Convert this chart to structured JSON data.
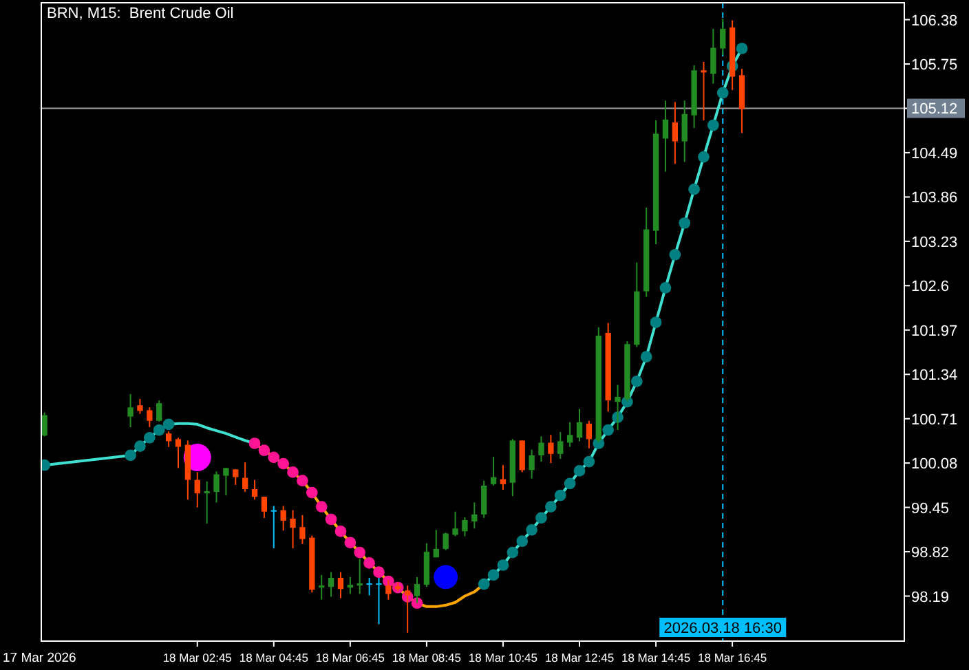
{
  "chart_data": {
    "type": "candlestick",
    "title": "BRN, M15:  Brent Crude Oil",
    "x": [
      "2026-03-17T22:45",
      "2026-03-18T01:00",
      "2026-03-18T01:15",
      "2026-03-18T01:30",
      "2026-03-18T01:45",
      "2026-03-18T02:00",
      "2026-03-18T02:15",
      "2026-03-18T02:30",
      "2026-03-18T02:45",
      "2026-03-18T03:00",
      "2026-03-18T03:15",
      "2026-03-18T03:30",
      "2026-03-18T03:45",
      "2026-03-18T04:00",
      "2026-03-18T04:15",
      "2026-03-18T04:30",
      "2026-03-18T04:45",
      "2026-03-18T05:00",
      "2026-03-18T05:15",
      "2026-03-18T05:30",
      "2026-03-18T05:45",
      "2026-03-18T06:00",
      "2026-03-18T06:15",
      "2026-03-18T06:30",
      "2026-03-18T06:45",
      "2026-03-18T07:00",
      "2026-03-18T07:15",
      "2026-03-18T07:30",
      "2026-03-18T07:45",
      "2026-03-18T08:00",
      "2026-03-18T08:15",
      "2026-03-18T08:30",
      "2026-03-18T08:45",
      "2026-03-18T09:00",
      "2026-03-18T09:15",
      "2026-03-18T09:30",
      "2026-03-18T09:45",
      "2026-03-18T10:00",
      "2026-03-18T10:15",
      "2026-03-18T10:30",
      "2026-03-18T10:45",
      "2026-03-18T11:00",
      "2026-03-18T11:15",
      "2026-03-18T11:30",
      "2026-03-18T11:45",
      "2026-03-18T12:00",
      "2026-03-18T12:15",
      "2026-03-18T12:30",
      "2026-03-18T12:45",
      "2026-03-18T13:00",
      "2026-03-18T13:15",
      "2026-03-18T13:30",
      "2026-03-18T13:45",
      "2026-03-18T14:00",
      "2026-03-18T14:15",
      "2026-03-18T14:30",
      "2026-03-18T14:45",
      "2026-03-18T15:00",
      "2026-03-18T15:15",
      "2026-03-18T15:30",
      "2026-03-18T15:45",
      "2026-03-18T16:00",
      "2026-03-18T16:15",
      "2026-03-18T16:30",
      "2026-03-18T16:45",
      "2026-03-18T17:00"
    ],
    "ohlc": [
      [
        100.47,
        100.8,
        100.46,
        100.76
      ],
      [
        100.74,
        101.06,
        100.59,
        100.87
      ],
      [
        100.9,
        100.99,
        100.78,
        100.82
      ],
      [
        100.83,
        100.87,
        100.59,
        100.68
      ],
      [
        100.68,
        100.97,
        100.67,
        100.93
      ],
      [
        100.5,
        100.53,
        100.31,
        100.39
      ],
      [
        100.42,
        100.44,
        100.01,
        100.31
      ],
      [
        100.34,
        100.4,
        99.56,
        99.84
      ],
      [
        99.84,
        99.95,
        99.45,
        99.65
      ],
      [
        99.65,
        99.82,
        99.22,
        99.68
      ],
      [
        99.67,
        99.96,
        99.52,
        99.92
      ],
      [
        99.9,
        100.01,
        99.62,
        100.01
      ],
      [
        99.99,
        99.99,
        99.77,
        99.88
      ],
      [
        99.87,
        100.09,
        99.67,
        99.71
      ],
      [
        99.71,
        99.84,
        99.56,
        99.6
      ],
      [
        99.6,
        99.6,
        99.3,
        99.39
      ],
      [
        99.41,
        99.47,
        98.87,
        99.41
      ],
      [
        99.41,
        99.47,
        99.12,
        99.26
      ],
      [
        99.29,
        99.41,
        98.87,
        99.16
      ],
      [
        99.17,
        99.34,
        98.93,
        99
      ],
      [
        99.02,
        99.05,
        98.24,
        98.28
      ],
      [
        98.31,
        98.49,
        98.14,
        98.34
      ],
      [
        98.32,
        98.53,
        98.18,
        98.45
      ],
      [
        98.45,
        98.53,
        98.16,
        98.29
      ],
      [
        98.31,
        98.46,
        98.22,
        98.35
      ],
      [
        98.34,
        98.72,
        98.22,
        98.37
      ],
      [
        98.37,
        98.45,
        98.2,
        98.37
      ],
      [
        98.37,
        98.45,
        97.79,
        98.37
      ],
      [
        98.34,
        98.42,
        98.14,
        98.22
      ],
      [
        98.33,
        98.38,
        98.26,
        98.29
      ],
      [
        98.27,
        98.34,
        97.67,
        98.2
      ],
      [
        98.19,
        98.46,
        98.09,
        98.36
      ],
      [
        98.35,
        98.94,
        98.32,
        98.82
      ],
      [
        98.74,
        99.13,
        98.74,
        98.86
      ],
      [
        98.86,
        99.09,
        98.84,
        99.08
      ],
      [
        99.06,
        99.39,
        99.04,
        99.15
      ],
      [
        99.11,
        99.31,
        99.04,
        99.27
      ],
      [
        99.25,
        99.52,
        99.15,
        99.35
      ],
      [
        99.35,
        99.83,
        99.3,
        99.76
      ],
      [
        99.78,
        100.17,
        99.76,
        99.88
      ],
      [
        99.85,
        100.05,
        99.7,
        99.78
      ],
      [
        99.8,
        100.42,
        99.61,
        100.4
      ],
      [
        100.4,
        100.4,
        99.95,
        99.98
      ],
      [
        99.98,
        100.27,
        99.86,
        100.19
      ],
      [
        100.19,
        100.46,
        100.1,
        100.37
      ],
      [
        100.37,
        100.48,
        100.08,
        100.21
      ],
      [
        100.21,
        100.52,
        100.14,
        100.39
      ],
      [
        100.37,
        100.66,
        100.31,
        100.48
      ],
      [
        100.44,
        100.85,
        100.39,
        100.66
      ],
      [
        100.64,
        100.68,
        100.29,
        100.42
      ],
      [
        100.4,
        102.01,
        100.37,
        101.89
      ],
      [
        101.93,
        102.07,
        100.81,
        100.97
      ],
      [
        100.95,
        101.19,
        100.55,
        101.02
      ],
      [
        100.99,
        101.81,
        100.96,
        101.77
      ],
      [
        101.76,
        102.93,
        101.73,
        102.52
      ],
      [
        102.52,
        103.71,
        102.44,
        103.4
      ],
      [
        103.38,
        104.95,
        103.19,
        104.76
      ],
      [
        104.69,
        105.23,
        104.22,
        104.96
      ],
      [
        104.92,
        105.21,
        104.33,
        104.65
      ],
      [
        104.65,
        105.23,
        104.36,
        105.04
      ],
      [
        105.02,
        105.73,
        104.84,
        105.66
      ],
      [
        105.66,
        105.78,
        104.95,
        105.63
      ],
      [
        105.61,
        106.25,
        105.47,
        105.98
      ],
      [
        105.97,
        106.39,
        105.88,
        106.25
      ],
      [
        106.27,
        106.37,
        105.38,
        105.57
      ],
      [
        105.59,
        105.68,
        104.77,
        105.11
      ]
    ],
    "colors": [
      "#228b22",
      "#228b22",
      "#ff4500",
      "#ff4500",
      "#228b22",
      "#ff4500",
      "#ff4500",
      "#ff4500",
      "#ff4500",
      "#228b22",
      "#228b22",
      "#228b22",
      "#ff4500",
      "#ff4500",
      "#ff4500",
      "#ff4500",
      "#00bfff",
      "#ff4500",
      "#ff4500",
      "#ff4500",
      "#ff4500",
      "#228b22",
      "#228b22",
      "#ff4500",
      "#228b22",
      "#228b22",
      "#00bfff",
      "#00bfff",
      "#ff4500",
      "#ff4500",
      "#ff4500",
      "#228b22",
      "#228b22",
      "#228b22",
      "#228b22",
      "#228b22",
      "#228b22",
      "#228b22",
      "#228b22",
      "#228b22",
      "#ff4500",
      "#228b22",
      "#ff4500",
      "#228b22",
      "#228b22",
      "#ff4500",
      "#228b22",
      "#228b22",
      "#228b22",
      "#ff4500",
      "#228b22",
      "#ff4500",
      "#228b22",
      "#228b22",
      "#228b22",
      "#228b22",
      "#228b22",
      "#228b22",
      "#ff4500",
      "#228b22",
      "#228b22",
      "#ff4500",
      "#228b22",
      "#228b22",
      "#ff4500",
      "#ff4500"
    ],
    "series": [
      {
        "type": "line",
        "color": "#40e0d0",
        "x": [
          "2026-03-17T22:45",
          "2026-03-18T01:00",
          "2026-03-18T01:15",
          "2026-03-18T01:30",
          "2026-03-18T01:45",
          "2026-03-18T02:00",
          "2026-03-18T02:15",
          "2026-03-18T02:30",
          "2026-03-18T02:45",
          "2026-03-18T03:00",
          "2026-03-18T03:15",
          "2026-03-18T03:30",
          "2026-03-18T03:45",
          "2026-03-18T04:00",
          "2026-03-18T04:15"
        ],
        "values": [
          100.05,
          100.19,
          100.32,
          100.44,
          100.55,
          100.63,
          100.64,
          100.64,
          100.63,
          100.58,
          100.54,
          100.5,
          100.45,
          100.4,
          100.36
        ]
      },
      {
        "type": "line",
        "color": "#ffa500",
        "x": [
          "2026-03-18T04:15",
          "2026-03-18T04:30",
          "2026-03-18T04:45",
          "2026-03-18T05:00",
          "2026-03-18T05:15",
          "2026-03-18T05:30",
          "2026-03-18T05:45",
          "2026-03-18T06:00",
          "2026-03-18T06:15",
          "2026-03-18T06:30",
          "2026-03-18T06:45",
          "2026-03-18T07:00",
          "2026-03-18T07:15",
          "2026-03-18T07:30",
          "2026-03-18T07:45",
          "2026-03-18T08:00",
          "2026-03-18T08:15",
          "2026-03-18T08:30",
          "2026-03-18T08:45",
          "2026-03-18T09:00",
          "2026-03-18T09:15",
          "2026-03-18T09:30",
          "2026-03-18T09:45",
          "2026-03-18T10:00",
          "2026-03-18T10:15"
        ],
        "values": [
          100.36,
          100.26,
          100.16,
          100.07,
          99.95,
          99.83,
          99.66,
          99.46,
          99.28,
          99.11,
          98.95,
          98.81,
          98.66,
          98.53,
          98.4,
          98.31,
          98.18,
          98.09,
          98.04,
          98.04,
          98.06,
          98.1,
          98.19,
          98.25,
          98.36
        ]
      },
      {
        "type": "line",
        "color": "#40e0d0",
        "x": [
          "2026-03-18T10:15",
          "2026-03-18T10:30",
          "2026-03-18T10:45",
          "2026-03-18T11:00",
          "2026-03-18T11:15",
          "2026-03-18T11:30",
          "2026-03-18T11:45",
          "2026-03-18T12:00",
          "2026-03-18T12:15",
          "2026-03-18T12:30",
          "2026-03-18T12:45",
          "2026-03-18T13:00",
          "2026-03-18T13:15",
          "2026-03-18T13:30",
          "2026-03-18T13:45",
          "2026-03-18T14:00",
          "2026-03-18T14:15",
          "2026-03-18T14:30",
          "2026-03-18T14:45",
          "2026-03-18T15:00",
          "2026-03-18T15:15",
          "2026-03-18T15:30",
          "2026-03-18T15:45",
          "2026-03-18T16:00",
          "2026-03-18T16:15",
          "2026-03-18T16:30",
          "2026-03-18T16:45",
          "2026-03-18T17:00"
        ],
        "values": [
          98.36,
          98.49,
          98.63,
          98.81,
          98.97,
          99.13,
          99.3,
          99.46,
          99.62,
          99.79,
          99.97,
          100.1,
          100.36,
          100.55,
          100.73,
          100.95,
          101.24,
          101.59,
          102.08,
          102.57,
          103.04,
          103.49,
          103.97,
          104.43,
          104.88,
          105.34,
          105.72,
          105.97
        ]
      },
      {
        "type": "scatter",
        "marker": "circle",
        "color": "#008080",
        "x": [
          "2026-03-17T22:45",
          "2026-03-18T01:00",
          "2026-03-18T01:15",
          "2026-03-18T01:30",
          "2026-03-18T01:45",
          "2026-03-18T02:00",
          "2026-03-18T10:15",
          "2026-03-18T10:30",
          "2026-03-18T10:45",
          "2026-03-18T11:00",
          "2026-03-18T11:15",
          "2026-03-18T11:30",
          "2026-03-18T11:45",
          "2026-03-18T12:00",
          "2026-03-18T12:15",
          "2026-03-18T12:30",
          "2026-03-18T12:45",
          "2026-03-18T13:00",
          "2026-03-18T13:15",
          "2026-03-18T13:30",
          "2026-03-18T13:45",
          "2026-03-18T14:00",
          "2026-03-18T14:15",
          "2026-03-18T14:30",
          "2026-03-18T14:45",
          "2026-03-18T15:00",
          "2026-03-18T15:15",
          "2026-03-18T15:30",
          "2026-03-18T15:45",
          "2026-03-18T16:00",
          "2026-03-18T16:15",
          "2026-03-18T16:30",
          "2026-03-18T16:45",
          "2026-03-18T17:00"
        ],
        "values": [
          100.05,
          100.19,
          100.32,
          100.44,
          100.55,
          100.63,
          98.36,
          98.49,
          98.63,
          98.81,
          98.97,
          99.13,
          99.3,
          99.46,
          99.62,
          99.79,
          99.97,
          100.1,
          100.36,
          100.55,
          100.73,
          100.95,
          101.24,
          101.59,
          102.08,
          102.57,
          103.04,
          103.49,
          103.97,
          104.43,
          104.88,
          105.34,
          105.72,
          105.97
        ]
      },
      {
        "type": "scatter",
        "marker": "circle",
        "color": "#ff1493",
        "x": [
          "2026-03-18T04:15",
          "2026-03-18T04:30",
          "2026-03-18T04:45",
          "2026-03-18T05:00",
          "2026-03-18T05:15",
          "2026-03-18T05:30",
          "2026-03-18T05:45",
          "2026-03-18T06:00",
          "2026-03-18T06:15",
          "2026-03-18T06:30",
          "2026-03-18T06:45",
          "2026-03-18T07:00",
          "2026-03-18T07:15",
          "2026-03-18T07:30",
          "2026-03-18T07:45",
          "2026-03-18T08:00",
          "2026-03-18T08:15",
          "2026-03-18T08:30"
        ],
        "values": [
          100.36,
          100.26,
          100.16,
          100.07,
          99.95,
          99.83,
          99.66,
          99.46,
          99.28,
          99.11,
          98.95,
          98.81,
          98.66,
          98.53,
          98.4,
          98.31,
          98.18,
          98.09
        ]
      },
      {
        "type": "bubble",
        "colors": [
          "#ff00ff",
          "#0000ff"
        ],
        "x": [
          "2026-03-18T02:45",
          "2026-03-18T09:15"
        ],
        "values": [
          100.16,
          98.46
        ],
        "sizes": [
          1,
          0.76
        ]
      }
    ],
    "ref_lines": [
      {
        "axis": "y",
        "value": 105.12,
        "label": "105.12",
        "color": "#a0a0a0",
        "line_style": "solid"
      },
      {
        "axis": "x",
        "value": "2026-03-18T16:30",
        "label": "2026.03.18 16:30",
        "color": "#00bfff",
        "line_style": "dashed"
      }
    ],
    "xlim": [
      "2026-03-17T22:40",
      "2026-03-18T21:15"
    ],
    "ylim": [
      97.55,
      106.62
    ],
    "annotations": [
      "17 Mar 2026"
    ],
    "xticks": [
      {
        "value": "2026-03-18T02:45",
        "label": "18 Mar 02:45"
      },
      {
        "value": "2026-03-18T04:45",
        "label": "18 Mar 04:45"
      },
      {
        "value": "2026-03-18T06:45",
        "label": "18 Mar 06:45"
      },
      {
        "value": "2026-03-18T08:45",
        "label": "18 Mar 08:45"
      },
      {
        "value": "2026-03-18T10:45",
        "label": "18 Mar 10:45"
      },
      {
        "value": "2026-03-18T12:45",
        "label": "18 Mar 12:45"
      },
      {
        "value": "2026-03-18T14:45",
        "label": "18 Mar 14:45"
      },
      {
        "value": "2026-03-18T16:45",
        "label": "18 Mar 16:45"
      }
    ],
    "yticks": [
      98.19,
      98.82,
      99.45,
      100.08,
      100.71,
      101.34,
      101.97,
      102.6,
      103.23,
      103.86,
      104.49,
      105.12,
      105.75,
      106.38
    ]
  }
}
